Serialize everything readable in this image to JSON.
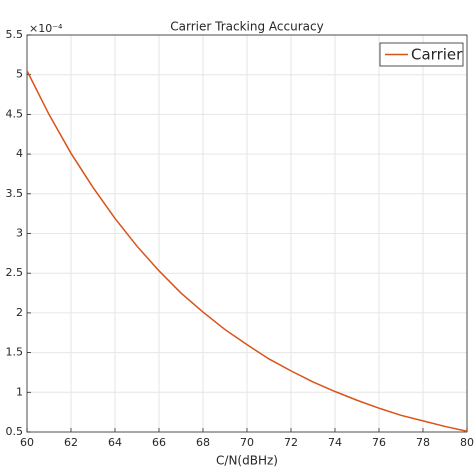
{
  "chart_data": {
    "type": "line",
    "title": "Carrier Tracking Accuracy",
    "x_label": "C/N(dBHz)",
    "y_exponent_label": "×10⁻⁴",
    "x": [
      60,
      61,
      62,
      63,
      64,
      65,
      66,
      67,
      68,
      69,
      70,
      71,
      72,
      73,
      74,
      75,
      76,
      77,
      78,
      79,
      80
    ],
    "series": [
      {
        "name": "Carrier",
        "color": "#d95319",
        "values": [
          5.05,
          4.5,
          4.01,
          3.58,
          3.19,
          2.84,
          2.53,
          2.25,
          2.01,
          1.79,
          1.6,
          1.42,
          1.27,
          1.13,
          1.01,
          0.9,
          0.8,
          0.71,
          0.64,
          0.57,
          0.51
        ]
      }
    ],
    "xlim": [
      60,
      80
    ],
    "xticks": [
      60,
      62,
      64,
      66,
      68,
      70,
      72,
      74,
      76,
      78,
      80
    ],
    "ylim": [
      0.5,
      5.5
    ],
    "yticks": [
      0.5,
      1,
      1.5,
      2,
      2.5,
      3,
      3.5,
      4,
      4.5,
      5,
      5.5
    ],
    "grid": true,
    "legend": "top-right"
  }
}
